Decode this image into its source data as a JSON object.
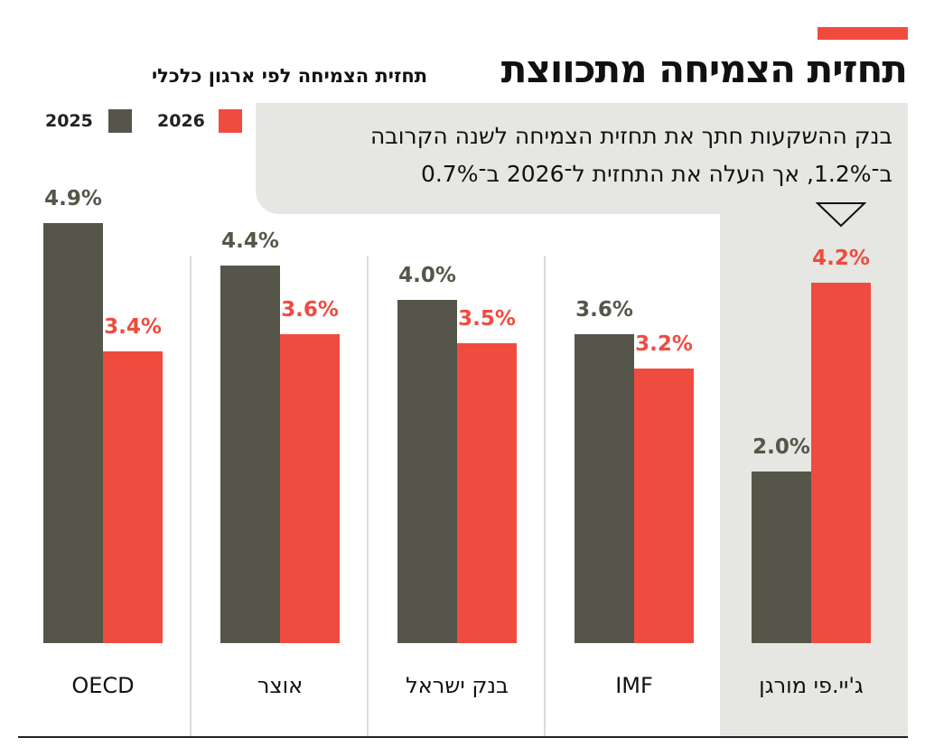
{
  "header": {
    "title": "תחזית הצמיחה מתכווצת",
    "subtitle": "תחזית הצמיחה לפי ארגון כלכלי"
  },
  "note": {
    "line1": "בנק ההשקעות חתך את תחזית הצמיחה לשנה הקרובה",
    "line2": "ב־1.2%, אך העלה את התחזית ל־2026 ב־0.7%"
  },
  "colors": {
    "y2025": "#555549",
    "y2026": "#f04b3f",
    "highlight": "#e6e6e2"
  },
  "chart_data": {
    "type": "bar",
    "title": "תחזית הצמיחה מתכווצת",
    "subtitle": "תחזית הצמיחה לפי ארגון כלכלי",
    "categories": [
      "OECD",
      "אוצר",
      "בנק ישראל",
      "IMF",
      "ג'יי.פי מורגן"
    ],
    "series": [
      {
        "name": "2025",
        "values": [
          4.9,
          4.4,
          4.0,
          3.6,
          2.0
        ],
        "labels": [
          "4.9%",
          "4.4%",
          "4.0%",
          "3.6%",
          "2.0%"
        ]
      },
      {
        "name": "2026",
        "values": [
          3.4,
          3.6,
          3.5,
          3.2,
          4.2
        ],
        "labels": [
          "3.4%",
          "3.6%",
          "3.5%",
          "3.2%",
          "4.2%"
        ]
      }
    ],
    "ylim": [
      0,
      5
    ],
    "xlabel": "",
    "ylabel": "",
    "legend": "top-left",
    "highlighted_category": "ג'יי.פי מורגן"
  }
}
